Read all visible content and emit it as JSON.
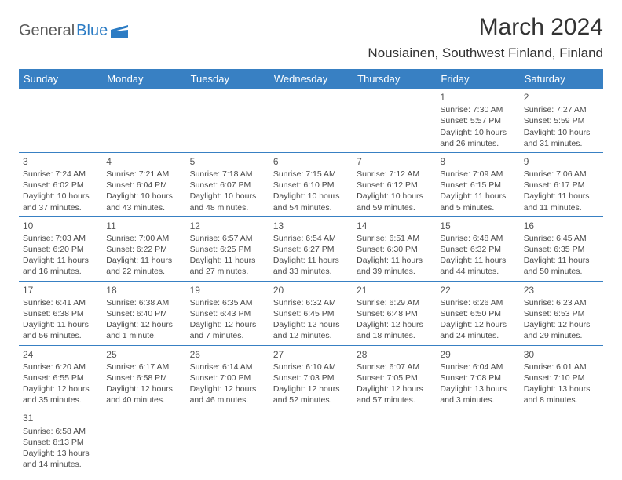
{
  "logo": {
    "part1": "General",
    "part2": "Blue"
  },
  "title": "March 2024",
  "location": "Nousiainen, Southwest Finland, Finland",
  "colors": {
    "header_bg": "#3880c3",
    "header_text": "#ffffff",
    "border": "#3880c3",
    "logo_gray": "#5a5a5a",
    "logo_blue": "#2c7cc4",
    "text": "#4a4a4a"
  },
  "day_headers": [
    "Sunday",
    "Monday",
    "Tuesday",
    "Wednesday",
    "Thursday",
    "Friday",
    "Saturday"
  ],
  "weeks": [
    [
      null,
      null,
      null,
      null,
      null,
      {
        "n": "1",
        "rise": "7:30 AM",
        "set": "5:57 PM",
        "day": "10 hours and 26 minutes."
      },
      {
        "n": "2",
        "rise": "7:27 AM",
        "set": "5:59 PM",
        "day": "10 hours and 31 minutes."
      }
    ],
    [
      {
        "n": "3",
        "rise": "7:24 AM",
        "set": "6:02 PM",
        "day": "10 hours and 37 minutes."
      },
      {
        "n": "4",
        "rise": "7:21 AM",
        "set": "6:04 PM",
        "day": "10 hours and 43 minutes."
      },
      {
        "n": "5",
        "rise": "7:18 AM",
        "set": "6:07 PM",
        "day": "10 hours and 48 minutes."
      },
      {
        "n": "6",
        "rise": "7:15 AM",
        "set": "6:10 PM",
        "day": "10 hours and 54 minutes."
      },
      {
        "n": "7",
        "rise": "7:12 AM",
        "set": "6:12 PM",
        "day": "10 hours and 59 minutes."
      },
      {
        "n": "8",
        "rise": "7:09 AM",
        "set": "6:15 PM",
        "day": "11 hours and 5 minutes."
      },
      {
        "n": "9",
        "rise": "7:06 AM",
        "set": "6:17 PM",
        "day": "11 hours and 11 minutes."
      }
    ],
    [
      {
        "n": "10",
        "rise": "7:03 AM",
        "set": "6:20 PM",
        "day": "11 hours and 16 minutes."
      },
      {
        "n": "11",
        "rise": "7:00 AM",
        "set": "6:22 PM",
        "day": "11 hours and 22 minutes."
      },
      {
        "n": "12",
        "rise": "6:57 AM",
        "set": "6:25 PM",
        "day": "11 hours and 27 minutes."
      },
      {
        "n": "13",
        "rise": "6:54 AM",
        "set": "6:27 PM",
        "day": "11 hours and 33 minutes."
      },
      {
        "n": "14",
        "rise": "6:51 AM",
        "set": "6:30 PM",
        "day": "11 hours and 39 minutes."
      },
      {
        "n": "15",
        "rise": "6:48 AM",
        "set": "6:32 PM",
        "day": "11 hours and 44 minutes."
      },
      {
        "n": "16",
        "rise": "6:45 AM",
        "set": "6:35 PM",
        "day": "11 hours and 50 minutes."
      }
    ],
    [
      {
        "n": "17",
        "rise": "6:41 AM",
        "set": "6:38 PM",
        "day": "11 hours and 56 minutes."
      },
      {
        "n": "18",
        "rise": "6:38 AM",
        "set": "6:40 PM",
        "day": "12 hours and 1 minute."
      },
      {
        "n": "19",
        "rise": "6:35 AM",
        "set": "6:43 PM",
        "day": "12 hours and 7 minutes."
      },
      {
        "n": "20",
        "rise": "6:32 AM",
        "set": "6:45 PM",
        "day": "12 hours and 12 minutes."
      },
      {
        "n": "21",
        "rise": "6:29 AM",
        "set": "6:48 PM",
        "day": "12 hours and 18 minutes."
      },
      {
        "n": "22",
        "rise": "6:26 AM",
        "set": "6:50 PM",
        "day": "12 hours and 24 minutes."
      },
      {
        "n": "23",
        "rise": "6:23 AM",
        "set": "6:53 PM",
        "day": "12 hours and 29 minutes."
      }
    ],
    [
      {
        "n": "24",
        "rise": "6:20 AM",
        "set": "6:55 PM",
        "day": "12 hours and 35 minutes."
      },
      {
        "n": "25",
        "rise": "6:17 AM",
        "set": "6:58 PM",
        "day": "12 hours and 40 minutes."
      },
      {
        "n": "26",
        "rise": "6:14 AM",
        "set": "7:00 PM",
        "day": "12 hours and 46 minutes."
      },
      {
        "n": "27",
        "rise": "6:10 AM",
        "set": "7:03 PM",
        "day": "12 hours and 52 minutes."
      },
      {
        "n": "28",
        "rise": "6:07 AM",
        "set": "7:05 PM",
        "day": "12 hours and 57 minutes."
      },
      {
        "n": "29",
        "rise": "6:04 AM",
        "set": "7:08 PM",
        "day": "13 hours and 3 minutes."
      },
      {
        "n": "30",
        "rise": "6:01 AM",
        "set": "7:10 PM",
        "day": "13 hours and 8 minutes."
      }
    ],
    [
      {
        "n": "31",
        "rise": "6:58 AM",
        "set": "8:13 PM",
        "day": "13 hours and 14 minutes."
      },
      null,
      null,
      null,
      null,
      null,
      null
    ]
  ],
  "labels": {
    "sunrise": "Sunrise:",
    "sunset": "Sunset:",
    "daylight": "Daylight:"
  }
}
